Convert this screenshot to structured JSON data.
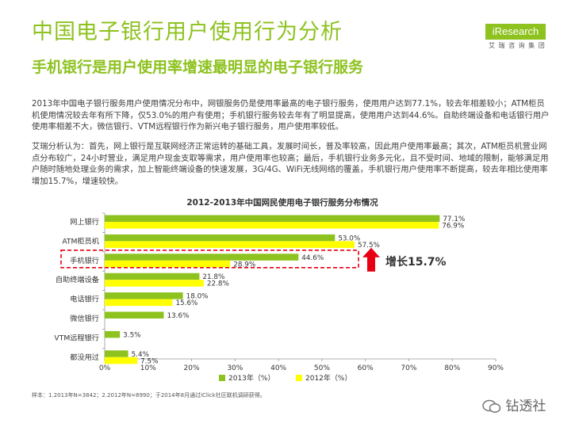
{
  "header": {
    "title": "中国电子银行用户使用行为分析",
    "subtitle": "手机银行是用户使用率增速最明显的电子银行服务"
  },
  "logo": {
    "name": "iResearch",
    "subtitle": "艾 瑞 咨 询 集 团"
  },
  "body": {
    "paragraph1": "2013年中国电子银行服务用户使用情况分布中，网银服务仍是使用率最高的电子银行服务，使用用户达到77.1%，较去年相差较小；ATM柜员机使用情况较去年有所下降，仅53.0%的用户有使用；手机银行服务较去年有了明显提高，使用用户达到44.6%。自助终端设备和电话银行用户使用率相差不大，微信银行、VTM远程银行作为新兴电子银行服务，用户使用率较低。",
    "paragraph2": "艾瑞分析认为：首先，网上银行是互联网经济正常运转的基础工具，发展时间长，普及率较高，因此用户使用率最高；其次，ATM柜员机营业网点分布较广，24小时营业，满足用户现金支取等需求，用户使用率也较高；最后，手机银行业务多元化，且不受时间、地域的限制，能够满足用户随时随地处理业务的需求，加上智能终端设备的快速发展，3G/4G、WiFi无线网络的覆盖，手机银行用户使用率不断提高，较去年相比使用率增加15.7%，增速较快。"
  },
  "chart_data": {
    "type": "bar",
    "orientation": "horizontal",
    "title": "2012-2013年中国网民使用电子银行服务分布情况",
    "categories": [
      "网上银行",
      "ATM柜员机",
      "手机银行",
      "自助终端设备",
      "电话银行",
      "微信银行",
      "VTM远程银行",
      "都没用过"
    ],
    "series": [
      {
        "name": "2013年（%）",
        "color": "#8dc21f",
        "values": [
          77.1,
          53.0,
          44.6,
          21.8,
          18.0,
          13.6,
          3.5,
          5.4
        ],
        "labels": [
          "77.1%",
          "53.0%",
          "44.6%",
          "21.8%",
          "18.0%",
          "13.6%",
          "3.5%",
          "5.4%"
        ]
      },
      {
        "name": "2012年（%）",
        "color": "#ffff00",
        "values": [
          76.9,
          57.5,
          28.9,
          22.8,
          15.6,
          null,
          null,
          7.5
        ],
        "labels": [
          "76.9%",
          "57.5%",
          "28.9%",
          "22.8%",
          "15.6%",
          "",
          "",
          "7.5%"
        ]
      }
    ],
    "xlim": [
      0,
      90
    ],
    "xticks": [
      "0%",
      "10%",
      "20%",
      "30%",
      "40%",
      "50%",
      "60%",
      "70%",
      "80%",
      "90%"
    ],
    "legend_position": "bottom",
    "highlight": {
      "category": "手机银行",
      "label": "增长15.7%"
    }
  },
  "footer": {
    "source": "样本：1.2013年N=3842；2.2012年N=8990；于2014年8月通过iClick社区联机调研获得。",
    "watermark": "钻透社"
  }
}
